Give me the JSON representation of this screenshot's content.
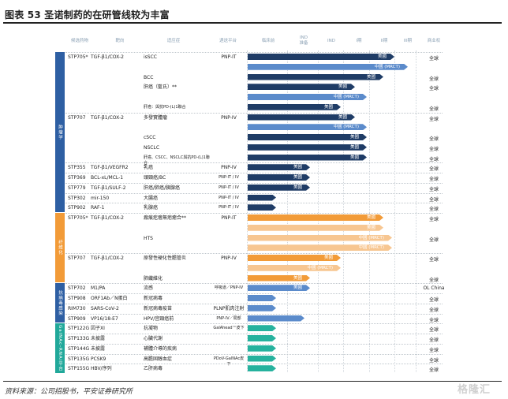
{
  "title": "图表 53   圣诺制药的在研管线较为丰富",
  "source": "资料来源：公司招股书，平安证券研究所",
  "watermark": "格隆汇",
  "header": {
    "drug": "候选药物",
    "target": "靶向",
    "indication": "适应症",
    "platform": "递送平台",
    "preclinical": "临床前",
    "ind_prep": "IND\n准备",
    "ind": "IND",
    "phase1": "I期",
    "phase2": "II期",
    "phase3": "III期",
    "rights": "商业权"
  },
  "colors": {
    "navy": "#1f3c66",
    "light": "#5b8bcb",
    "orange": "#f29b38",
    "ltorange": "#f7c691",
    "teal": "#26b29e",
    "side_blue": "#2e5fa3",
    "side_orange": "#f29b38",
    "side_teal": "#21a89a"
  },
  "sections": [
    {
      "label": "肿瘤学",
      "color": "side_blue"
    },
    {
      "label": "纤维化",
      "color": "side_orange"
    },
    {
      "label": "抗病毒感染",
      "color": "side_blue"
    },
    {
      "label": "GalNAc-RNAi平台",
      "color": "side_teal"
    }
  ],
  "rows": [
    {
      "drug": "STP705*",
      "target": "TGF-β1/COX-2",
      "ind": "isSCC",
      "platform": "PNP-IT",
      "bars": [
        {
          "stage": "3a",
          "label": "美國",
          "c": "navy"
        }
      ],
      "rights": "全球"
    },
    {
      "drug": "",
      "target": "",
      "ind": "",
      "platform": "",
      "bars": [
        {
          "stage": "3",
          "label": "中國 (MRCT)",
          "c": "light"
        }
      ],
      "rights": ""
    },
    {
      "drug": "",
      "target": "",
      "ind": "BCC",
      "platform": "",
      "bars": [
        {
          "stage": "2b",
          "label": "美國",
          "c": "navy"
        }
      ],
      "rights": "全球"
    },
    {
      "drug": "",
      "target": "",
      "ind": "肝癌（藍氏）**",
      "platform": "",
      "bars": [
        {
          "stage": "1b",
          "label": "美國",
          "c": "navy"
        }
      ],
      "rights": "全球"
    },
    {
      "drug": "",
      "target": "",
      "ind": "",
      "platform": "",
      "bars": [
        {
          "stage": "1",
          "label": "中國 (MRCT)",
          "c": "light"
        }
      ],
      "rights": ""
    },
    {
      "drug": "",
      "target": "",
      "ind": "肝癌：與抗PD-(L)1聯合",
      "platform": "",
      "bars": [
        {
          "stage": "ind",
          "label": "美國",
          "c": "navy"
        }
      ],
      "rights": "全球"
    },
    {
      "drug": "STP707",
      "target": "TGF-β1/COX-2",
      "ind": "多發實體瘤",
      "platform": "PNP-IV",
      "bars": [
        {
          "stage": "1b",
          "label": "美國",
          "c": "navy"
        }
      ],
      "rights": "全球"
    },
    {
      "drug": "",
      "target": "",
      "ind": "",
      "platform": "",
      "bars": [
        {
          "stage": "1",
          "label": "中國 (MRCT)",
          "c": "light"
        }
      ],
      "rights": ""
    },
    {
      "drug": "",
      "target": "",
      "ind": "cSCC",
      "platform": "",
      "bars": [
        {
          "stage": "1",
          "label": "美國",
          "c": "navy"
        }
      ],
      "rights": "全球"
    },
    {
      "drug": "",
      "target": "",
      "ind": "NSCLC",
      "platform": "",
      "bars": [
        {
          "stage": "1",
          "label": "美國",
          "c": "navy"
        }
      ],
      "rights": "全球"
    },
    {
      "drug": "",
      "target": "",
      "ind": "肝癌、CSCC、NSCLC與抗PD-(L)1聯合",
      "platform": "",
      "bars": [
        {
          "stage": "1",
          "label": "美國",
          "c": "navy"
        }
      ],
      "rights": "全球"
    },
    {
      "drug": "STP355",
      "target": "TGF-β1/VEGFR2",
      "ind": "乳癌",
      "platform": "PNP-IV",
      "bars": [
        {
          "stage": "ip",
          "label": "美國",
          "c": "navy"
        }
      ],
      "rights": "全球"
    },
    {
      "drug": "STP369",
      "target": "BCL-xL/MCL-1",
      "ind": "頭頸癌/BC",
      "platform": "PNP-IT / IV",
      "bars": [
        {
          "stage": "ip",
          "label": "美國",
          "c": "navy"
        }
      ],
      "rights": "全球"
    },
    {
      "drug": "STP779",
      "target": "TGF-β1/SULF-2",
      "ind": "肝癌/肺癌/胰腺癌",
      "platform": "PNP-IT / IV",
      "bars": [
        {
          "stage": "ip",
          "label": "美國",
          "c": "navy"
        }
      ],
      "rights": "全球"
    },
    {
      "drug": "STP302",
      "target": "mir-150",
      "ind": "大腸癌",
      "platform": "PNP-IT / IV",
      "bars": [
        {
          "stage": "pc",
          "label": "",
          "c": "navy"
        }
      ],
      "rights": "全球"
    },
    {
      "drug": "STP902",
      "target": "RAF-1",
      "ind": "乳腺癌",
      "platform": "PNP-IT / IV",
      "bars": [
        {
          "stage": "pc",
          "label": "",
          "c": "navy"
        }
      ],
      "rights": "全球"
    },
    {
      "drug": "STP705*",
      "target": "TGF-β1/COX-2",
      "ind": "瘢痕疙瘩無疤癒合**",
      "platform": "PNP-IT",
      "bars": [
        {
          "stage": "2b",
          "label": "美國",
          "c": "orange"
        }
      ],
      "rights": "全球"
    },
    {
      "drug": "",
      "target": "",
      "ind": "",
      "platform": "",
      "bars": [
        {
          "stage": "2b",
          "label": "美國",
          "c": "ltorange"
        }
      ],
      "rights": ""
    },
    {
      "drug": "",
      "target": "",
      "ind": "HTS",
      "platform": "",
      "bars": [
        {
          "stage": "2",
          "label": "中國 (MRCT)",
          "c": "ltorange"
        }
      ],
      "rights": "全球"
    },
    {
      "drug": "",
      "target": "",
      "ind": "",
      "platform": "",
      "bars": [
        {
          "stage": "2",
          "label": "中國 (MRCT)",
          "c": "ltorange"
        }
      ],
      "rights": ""
    },
    {
      "drug": "STP707",
      "target": "TGF-β1/COX-2",
      "ind": "原發性硬化性膽管炎",
      "platform": "PNP-IV",
      "bars": [
        {
          "stage": "ind",
          "label": "美國",
          "c": "orange"
        }
      ],
      "rights": "全球"
    },
    {
      "drug": "",
      "target": "",
      "ind": "",
      "platform": "",
      "bars": [
        {
          "stage": "ind",
          "label": "中國 (MRCT)",
          "c": "ltorange"
        }
      ],
      "rights": ""
    },
    {
      "drug": "",
      "target": "",
      "ind": "肺纖維化",
      "platform": "",
      "bars": [
        {
          "stage": "ip",
          "label": "美國",
          "c": "orange"
        }
      ],
      "rights": "全球"
    },
    {
      "drug": "STP702",
      "target": "M1/PA",
      "ind": "流感",
      "platform": "呼吸道／PNP-IV",
      "bars": [
        {
          "stage": "ip",
          "label": "美國",
          "c": "light"
        }
      ],
      "rights": "OL China"
    },
    {
      "drug": "STP908",
      "target": "ORF1Ab／N蛋白",
      "ind": "新冠病毒",
      "platform": "",
      "bars": [
        {
          "stage": "pc",
          "label": "",
          "c": "light"
        }
      ],
      "rights": "全球"
    },
    {
      "drug": "RIM730",
      "target": "SARS-CoV-2",
      "ind": "新冠病毒疫苗",
      "platform": "PLNP肌肉注射",
      "bars": [
        {
          "stage": "pc",
          "label": "",
          "c": "light"
        }
      ],
      "rights": "全球"
    },
    {
      "drug": "STP909",
      "target": "VP16/18-E7",
      "ind": "HPV/宫頸癌前",
      "platform": "PNP-IV／局部",
      "bars": [
        {
          "stage": "ipx",
          "label": "",
          "c": "light"
        }
      ],
      "rights": "全球"
    },
    {
      "drug": "STP122G",
      "target": "因子XI",
      "ind": "抗凝物",
      "platform": "GalAhead™皮下",
      "bars": [
        {
          "stage": "pc",
          "label": "",
          "c": "teal"
        }
      ],
      "rights": "全球"
    },
    {
      "drug": "STP133G",
      "target": "未披露",
      "ind": "心臟代謝",
      "platform": "",
      "bars": [
        {
          "stage": "pc",
          "label": "",
          "c": "teal"
        }
      ],
      "rights": "全球"
    },
    {
      "drug": "STP144G",
      "target": "未披露",
      "ind": "補體介導的疾病",
      "platform": "",
      "bars": [
        {
          "stage": "pc",
          "label": "",
          "c": "teal"
        }
      ],
      "rights": "全球"
    },
    {
      "drug": "STP135G",
      "target": "PCSK9",
      "ind": "高膽固醇血症",
      "platform": "PDoV-GalNAc皮下",
      "bars": [
        {
          "stage": "pc",
          "label": "",
          "c": "teal"
        }
      ],
      "rights": "全球"
    },
    {
      "drug": "STP155G",
      "target": "HBV/序列",
      "ind": "乙肝病毒",
      "platform": "",
      "bars": [
        {
          "stage": "pc",
          "label": "",
          "c": "teal"
        }
      ],
      "rights": "全球"
    }
  ]
}
